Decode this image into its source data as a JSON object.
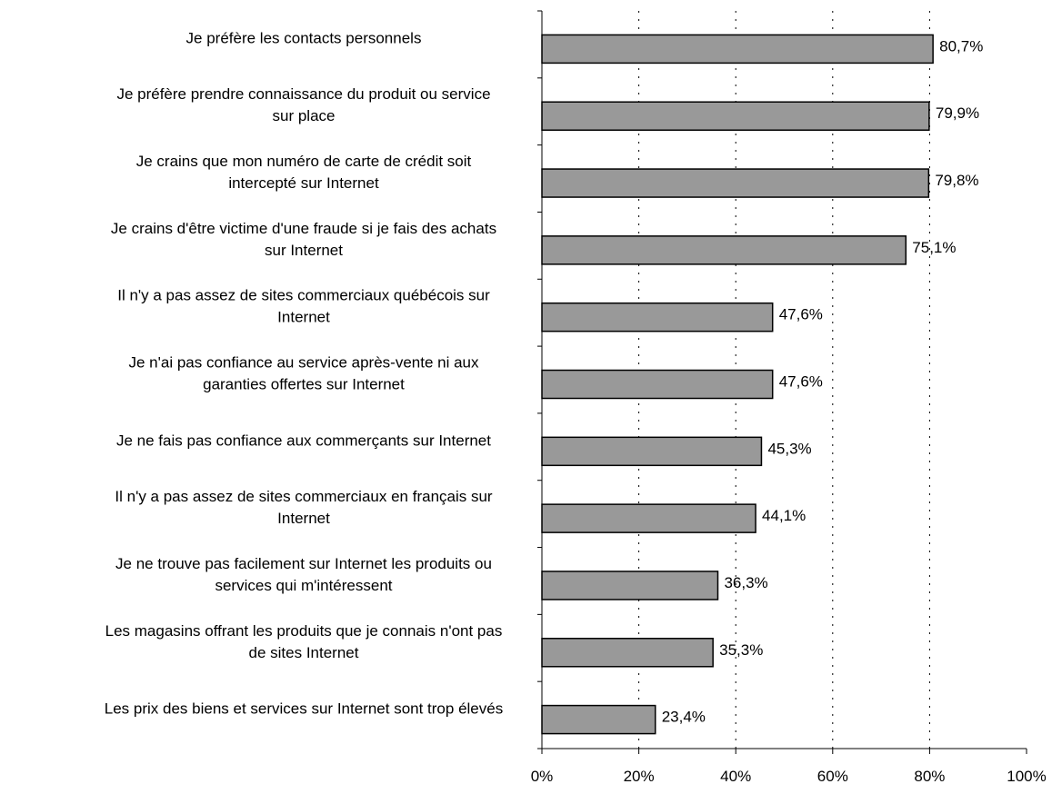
{
  "chart_data": {
    "type": "bar",
    "orientation": "horizontal",
    "title": "",
    "xlabel": "",
    "ylabel": "",
    "xlim": [
      0,
      100
    ],
    "x_ticks": [
      "0%",
      "20%",
      "40%",
      "60%",
      "80%",
      "100%"
    ],
    "grid": "vertical dotted lines at 20% intervals",
    "bar_color": "#999999",
    "categories": [
      [
        "Je préfère les contacts personnels"
      ],
      [
        "Je préfère prendre connaissance du produit ou service",
        "sur place"
      ],
      [
        "Je crains que mon numéro de carte de crédit soit",
        "intercepté sur Internet"
      ],
      [
        "Je crains d'être victime d'une fraude si je fais des achats",
        "sur Internet"
      ],
      [
        "Il n'y a pas assez de sites commerciaux québécois sur",
        "Internet"
      ],
      [
        "Je n'ai pas confiance au service après-vente ni aux",
        "garanties offertes sur Internet"
      ],
      [
        "Je ne fais pas confiance aux commerçants sur Internet"
      ],
      [
        "Il n'y a pas assez de sites commerciaux en français sur",
        "Internet"
      ],
      [
        "Je ne trouve pas facilement sur Internet les produits ou",
        "services qui m'intéressent"
      ],
      [
        "Les magasins offrant les produits que je connais n'ont pas",
        "de sites Internet"
      ],
      [
        "Les prix des biens et services sur Internet sont trop élevés"
      ]
    ],
    "values": [
      80.7,
      79.9,
      79.8,
      75.1,
      47.6,
      47.6,
      45.3,
      44.1,
      36.3,
      35.3,
      23.4
    ],
    "value_labels": [
      "80,7%",
      "79,9%",
      "79,8%",
      "75,1%",
      "47,6%",
      "47,6%",
      "45,3%",
      "44,1%",
      "36,3%",
      "35,3%",
      "23,4%"
    ]
  }
}
